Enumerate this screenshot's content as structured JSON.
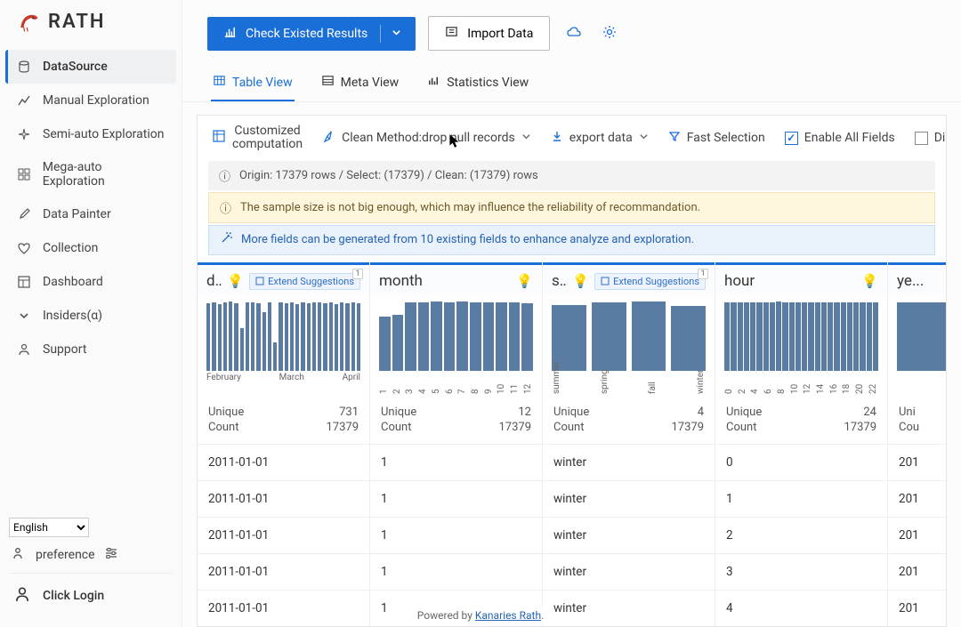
{
  "app": {
    "name": "RATH"
  },
  "nav": {
    "items": [
      {
        "label": "DataSource",
        "active": true,
        "icon": "database"
      },
      {
        "label": "Manual Exploration",
        "active": false,
        "icon": "chart-line"
      },
      {
        "label": "Semi-auto Exploration",
        "active": false,
        "icon": "sparkle"
      },
      {
        "label": "Mega-auto Exploration",
        "active": false,
        "icon": "grid"
      },
      {
        "label": "Data Painter",
        "active": false,
        "icon": "brush"
      },
      {
        "label": "Collection",
        "active": false,
        "icon": "heart"
      },
      {
        "label": "Dashboard",
        "active": false,
        "icon": "layout"
      },
      {
        "label": "Insiders(α)",
        "active": false,
        "icon": "chevron"
      },
      {
        "label": "Support",
        "active": false,
        "icon": "person"
      }
    ]
  },
  "sidebar_bottom": {
    "language": "English",
    "preference": "preference",
    "login": "Click Login"
  },
  "topbar": {
    "check": "Check Existed Results",
    "import": "Import Data"
  },
  "tabs": [
    {
      "label": "Table View",
      "active": true
    },
    {
      "label": "Meta View",
      "active": false
    },
    {
      "label": "Statistics View",
      "active": false
    }
  ],
  "toolbar": {
    "custom_line1": "Customized",
    "custom_line2": "computation",
    "clean": "Clean Method:drop null records",
    "export": "export data",
    "fast": "Fast Selection",
    "enable": "Enable All Fields",
    "disable": "Disable All Fields"
  },
  "banners": {
    "info": "Origin: 17379 rows / Select: (17379) / Clean: (17379) rows",
    "warn": "The sample size is not big enough, which may influence the reliability of recommandation.",
    "tip": "More fields can be generated from 10 existing fields to enhance analyze and exploration."
  },
  "columns": [
    {
      "title": "d...",
      "extend": "Extend Suggestions",
      "extend_count": "1",
      "chart": {
        "type": "bar",
        "color": "#5a7ca3",
        "values": [
          95,
          97,
          94,
          96,
          98,
          95,
          60,
          97,
          96,
          95,
          82,
          97,
          40,
          96,
          95,
          97,
          94,
          96,
          95,
          97,
          96,
          95,
          96,
          94,
          97,
          95,
          96,
          95
        ],
        "labels": [
          "February",
          "March",
          "April"
        ],
        "label_mode": "horizontal"
      },
      "unique": "731",
      "count": "17379",
      "cells": [
        "2011-01-01",
        "2011-01-01",
        "2011-01-01",
        "2011-01-01",
        "2011-01-01"
      ]
    },
    {
      "title": "month",
      "extend": null,
      "chart": {
        "type": "bar",
        "color": "#5a7ca3",
        "values": [
          76,
          78,
          95,
          96,
          97,
          96,
          97,
          96,
          96,
          95,
          96,
          94
        ],
        "labels": [
          "1",
          "2",
          "3",
          "4",
          "5",
          "6",
          "7",
          "8",
          "9",
          "10",
          "11",
          "12"
        ],
        "label_mode": "vertical"
      },
      "unique": "12",
      "count": "17379",
      "cells": [
        "1",
        "1",
        "1",
        "1",
        "1"
      ]
    },
    {
      "title": "se...",
      "extend": "Extend Suggestions",
      "extend_count": "1",
      "chart": {
        "type": "bar",
        "color": "#5a7ca3",
        "values": [
          92,
          96,
          97,
          90
        ],
        "labels": [
          "summer",
          "spring",
          "fall",
          "winter"
        ],
        "label_mode": "vertical"
      },
      "unique": "4",
      "count": "17379",
      "cells": [
        "winter",
        "winter",
        "winter",
        "winter",
        "winter"
      ]
    },
    {
      "title": "hour",
      "extend": null,
      "chart": {
        "type": "bar",
        "color": "#5a7ca3",
        "values": [
          96,
          96,
          96,
          96,
          95,
          95,
          96,
          96,
          97,
          96,
          96,
          96,
          96,
          95,
          96,
          96,
          96,
          96,
          96,
          95,
          96,
          96,
          96,
          95
        ],
        "labels": [
          "0",
          "2",
          "4",
          "6",
          "8",
          "10",
          "12",
          "14",
          "16",
          "18",
          "20",
          "22"
        ],
        "label_mode": "vertical"
      },
      "unique": "24",
      "count": "17379",
      "cells": [
        "0",
        "1",
        "2",
        "3",
        "4"
      ]
    },
    {
      "title": "ye...",
      "extend": null,
      "chart": {
        "type": "bar",
        "color": "#5a7ca3",
        "values": [
          96,
          97
        ],
        "labels": [],
        "label_mode": "vertical"
      },
      "unique_lbl": "Uni",
      "count_lbl": "Cou",
      "cells": [
        "201",
        "201",
        "201",
        "201",
        "201"
      ]
    }
  ],
  "labels": {
    "unique": "Unique",
    "count": "Count"
  },
  "footer": {
    "powered": "Powered by ",
    "link": "Kanaries Rath"
  },
  "colors": {
    "accent": "#1a6ed8",
    "bar": "#5a7ca3",
    "sidebar_bg": "#fafafa",
    "warn_bg": "#fff7dd",
    "tip_bg": "#e9f2fb"
  }
}
